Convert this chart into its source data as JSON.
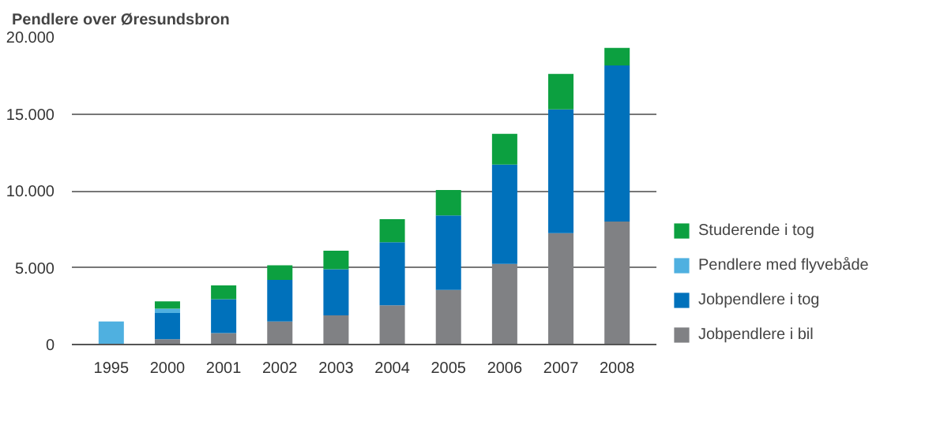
{
  "chart_data": {
    "type": "bar",
    "title": "Pendlere over Øresundsbron",
    "stacked": true,
    "categories": [
      "1995",
      "2000",
      "2001",
      "2002",
      "2003",
      "2004",
      "2005",
      "2006",
      "2007",
      "2008"
    ],
    "series": [
      {
        "name": "Jobpendlere i bil",
        "color": "#808184",
        "values": [
          null,
          350,
          750,
          1500,
          1900,
          2550,
          3550,
          5250,
          7250,
          8000
        ]
      },
      {
        "name": "Jobpendlere i tog",
        "color": "#0071bb",
        "values": [
          null,
          1700,
          2200,
          2700,
          3000,
          4100,
          4850,
          6450,
          8050,
          10150
        ]
      },
      {
        "name": "Pendlere med flyvebåde",
        "color": "#4fb0e0",
        "values": [
          1500,
          280,
          null,
          null,
          null,
          null,
          null,
          null,
          null,
          null
        ]
      },
      {
        "name": "Studerende i tog",
        "color": "#0ca040",
        "values": [
          null,
          480,
          900,
          950,
          1200,
          1500,
          1650,
          2000,
          2300,
          1150
        ]
      }
    ],
    "ylim": [
      0,
      20000
    ],
    "yticks": [
      0,
      {
        "value": 5000,
        "label": "5.000"
      },
      {
        "value": 10000,
        "label": "10.000"
      },
      {
        "value": 15000,
        "label": "15.000"
      },
      {
        "value": 20000,
        "label": "20.000"
      }
    ],
    "grid": "y",
    "legend": "right"
  }
}
